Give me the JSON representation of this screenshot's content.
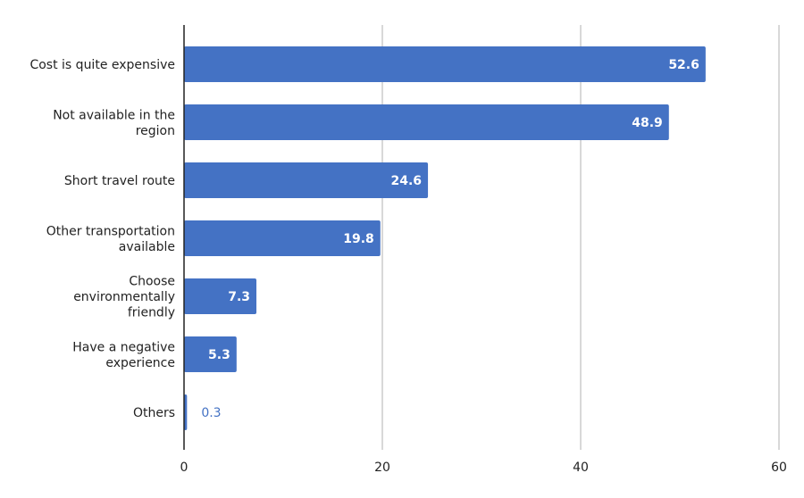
{
  "chart_data": {
    "type": "bar",
    "orientation": "horizontal",
    "title": "",
    "xlabel": "",
    "ylabel": "",
    "categories": [
      "Cost is quite expensive",
      "Not available in the region",
      "Short travel route",
      "Other transportation available",
      "Choose environmentally friendly",
      "Have a negative experience",
      "Others"
    ],
    "category_lines": [
      [
        "Cost is quite expensive"
      ],
      [
        "Not available in the",
        "region"
      ],
      [
        "Short travel route"
      ],
      [
        "Other transportation",
        "available"
      ],
      [
        "Choose",
        "environmentally",
        "friendly"
      ],
      [
        "Have a negative",
        "experience"
      ],
      [
        "Others"
      ]
    ],
    "values": [
      52.6,
      48.9,
      24.6,
      19.8,
      7.3,
      5.3,
      0.3
    ],
    "value_labels": [
      "52.6",
      "48.9",
      "24.6",
      "19.8",
      "7.3",
      "5.3",
      "0.3"
    ],
    "xlim": [
      0,
      60
    ],
    "xticks": [
      0,
      20,
      40,
      60
    ],
    "xtick_labels": [
      "0",
      "20",
      "40",
      "60"
    ],
    "grid": true,
    "legend": "none",
    "bar_color": "#4472c4",
    "grid_color": "#cccccc",
    "axis_color": "#222222"
  }
}
